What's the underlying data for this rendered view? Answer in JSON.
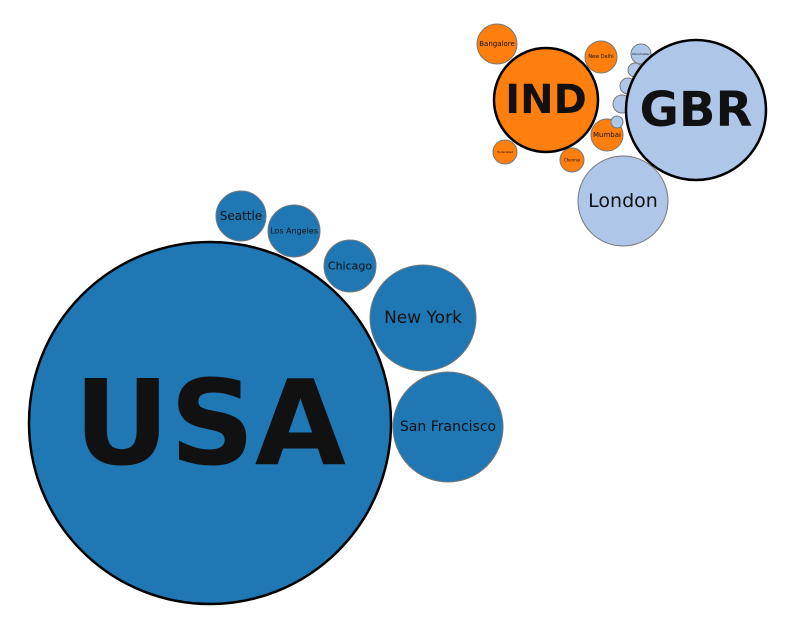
{
  "chart_data": {
    "type": "bubble",
    "colors": {
      "USA": "#1f77b4",
      "IND": "#ff7f0e",
      "GBR": "#aec7e8",
      "country_stroke": "#000000",
      "city_stroke": "#777777"
    },
    "countries": [
      {
        "id": "USA",
        "label": "USA",
        "cities": [
          {
            "label": "Seattle"
          },
          {
            "label": "Los Angeles"
          },
          {
            "label": "Chicago"
          },
          {
            "label": "New York"
          },
          {
            "label": "San Francisco"
          }
        ]
      },
      {
        "id": "IND",
        "label": "IND",
        "cities": [
          {
            "label": "Bangalore"
          },
          {
            "label": "New Delhi"
          },
          {
            "label": "Mumbai"
          },
          {
            "label": "Chennai"
          },
          {
            "label": "Hyderabad"
          }
        ]
      },
      {
        "id": "GBR",
        "label": "GBR",
        "cities": [
          {
            "label": "London"
          },
          {
            "label": "Manchester"
          },
          {
            "label": ""
          },
          {
            "label": ""
          },
          {
            "label": ""
          },
          {
            "label": ""
          }
        ]
      }
    ]
  }
}
